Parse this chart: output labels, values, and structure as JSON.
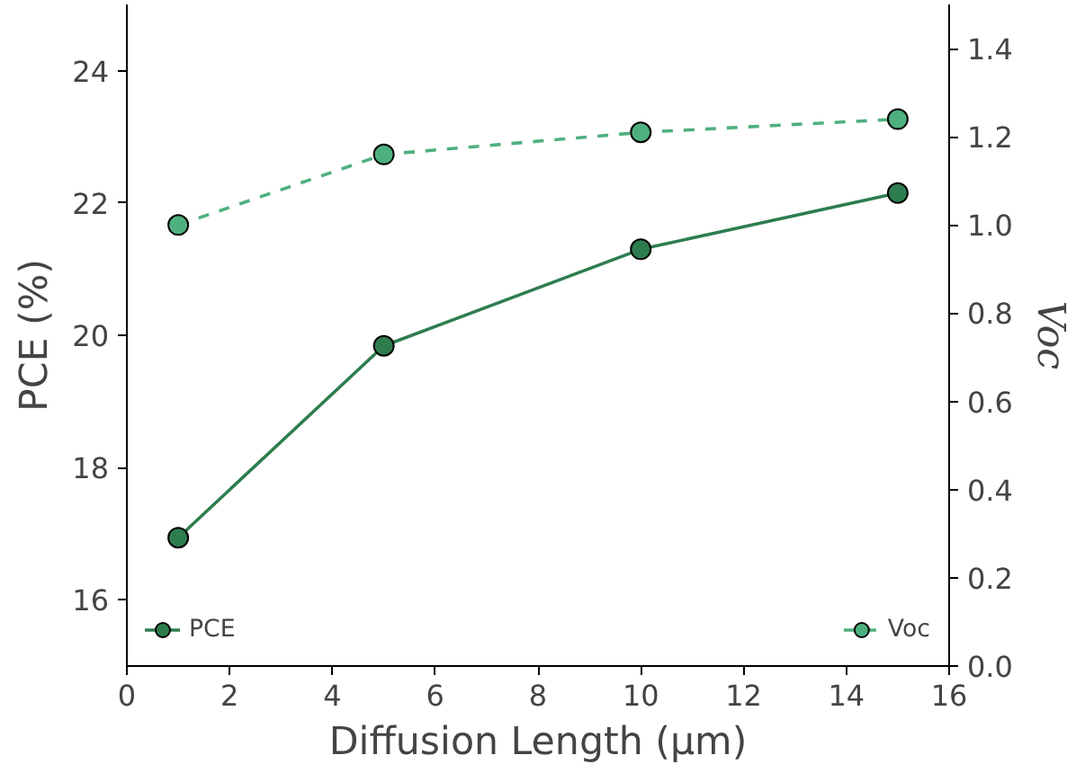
{
  "chart_data": {
    "type": "line",
    "x": [
      1,
      5,
      10,
      15
    ],
    "xlabel": "Diffusion Length (μm)",
    "ylabel": "PCE (%)",
    "y2label": "Voc",
    "series": [
      {
        "name": "PCE",
        "color": "#2e7d4f",
        "values": [
          16.94,
          19.84,
          21.3,
          22.15
        ],
        "line_style": "solid"
      },
      {
        "name": "Voc",
        "color": "#4fb07f",
        "values": [
          1.0,
          1.16,
          1.21,
          1.24
        ],
        "axis": "y2",
        "line_style": "dashed"
      }
    ],
    "xlim": [
      0,
      16
    ],
    "xticks": [
      0,
      2,
      4,
      6,
      8,
      10,
      12,
      14,
      16
    ],
    "ylim": [
      15,
      25
    ],
    "yticks": [
      16,
      18,
      20,
      22,
      24
    ],
    "y2lim": [
      0,
      1.5
    ],
    "y2ticks": [
      {
        "value": 0,
        "label": "0.0"
      },
      {
        "value": 0.2,
        "label": "0.2"
      },
      {
        "value": 0.4,
        "label": "0.4"
      },
      {
        "value": 0.6,
        "label": "0.6"
      },
      {
        "value": 0.8,
        "label": "0.8"
      },
      {
        "value": 1.0,
        "label": "1.0"
      },
      {
        "value": 1.2,
        "label": "1.2"
      },
      {
        "value": 1.4,
        "label": "1.4"
      }
    ],
    "marker": "circle",
    "grid": false,
    "legend": "bottom"
  }
}
